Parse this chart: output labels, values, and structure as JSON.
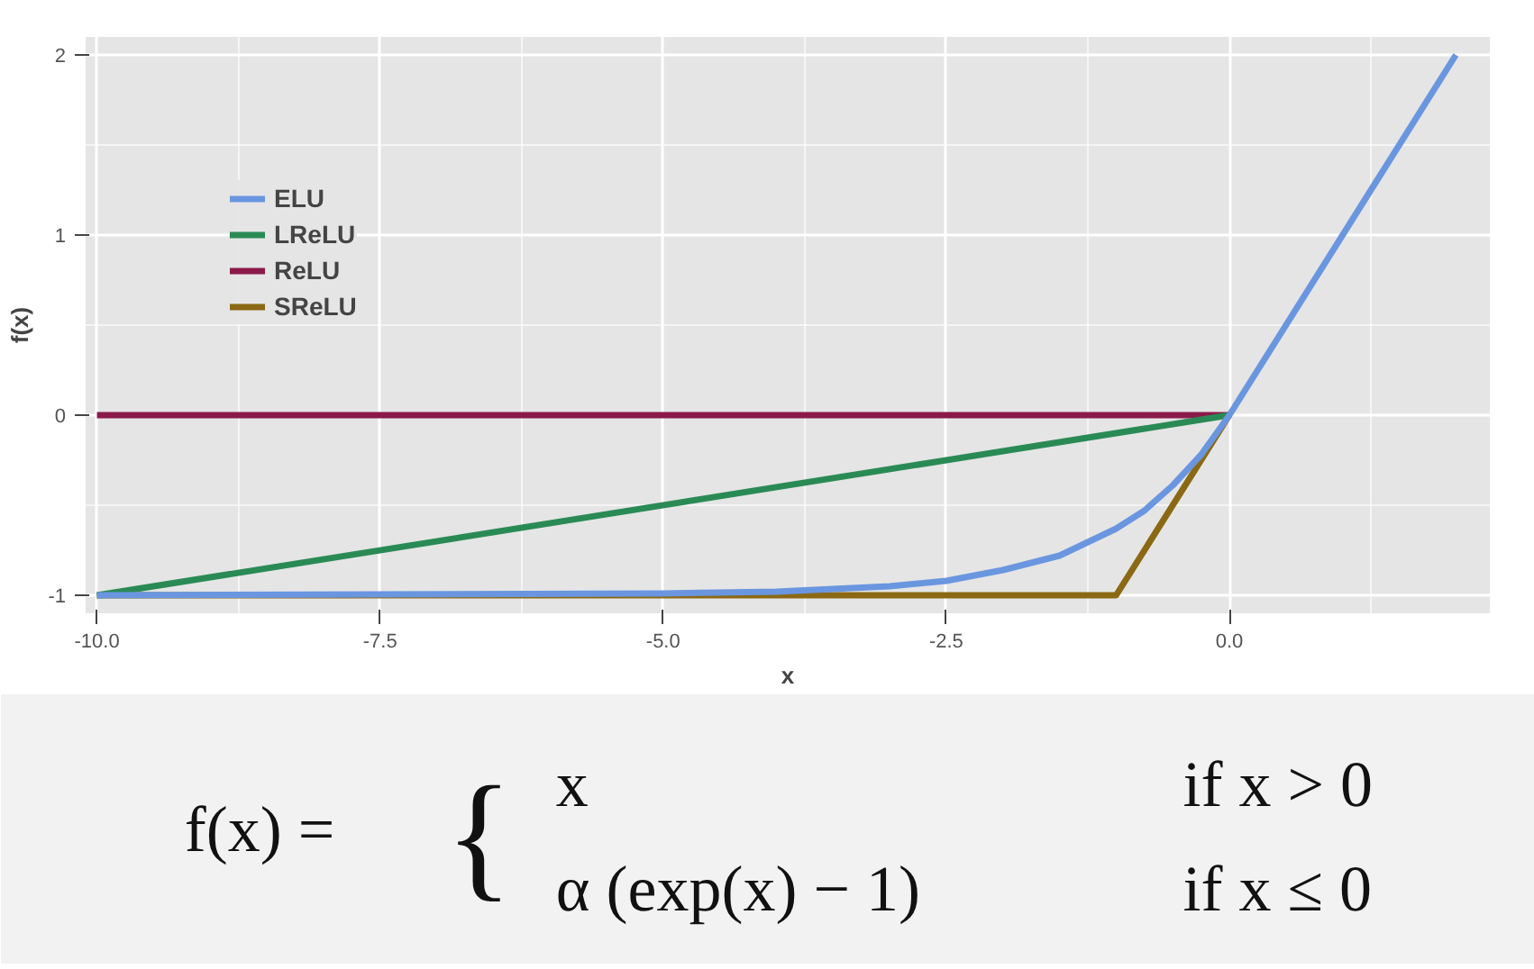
{
  "chart_data": {
    "type": "line",
    "xlabel": "x",
    "ylabel": "f(x)",
    "xlim": [
      -10.1,
      2.3
    ],
    "ylim": [
      -1.1,
      2.1
    ],
    "xticks": [
      {
        "value": -10,
        "label": "-10.0"
      },
      {
        "value": -7.5,
        "label": "-7.5"
      },
      {
        "value": -5,
        "label": "-5.0"
      },
      {
        "value": -2.5,
        "label": "-2.5"
      },
      {
        "value": 0,
        "label": "0.0"
      }
    ],
    "yticks": [
      -1,
      0,
      1,
      2
    ],
    "grid": true,
    "legend": "top left",
    "marker": "none",
    "line_style": "solid",
    "series": [
      {
        "name": "ELU",
        "color": "#6a96e0",
        "x": [
          -10,
          -5,
          -4,
          -3,
          -2.5,
          -2,
          -1.5,
          -1,
          -0.75,
          -0.5,
          -0.25,
          0,
          2
        ],
        "values": [
          -1,
          -0.99,
          -0.98,
          -0.95,
          -0.92,
          -0.86,
          -0.78,
          -0.63,
          -0.53,
          -0.39,
          -0.22,
          0,
          2
        ]
      },
      {
        "name": "LReLU",
        "color": "#2a8a55",
        "x": [
          -10,
          0
        ],
        "values": [
          -1,
          0
        ]
      },
      {
        "name": "ReLU",
        "color": "#8b1a4a",
        "x": [
          -10,
          0
        ],
        "values": [
          0,
          0
        ]
      },
      {
        "name": "SReLU",
        "color": "#8b6914",
        "x": [
          -10,
          -1,
          0
        ],
        "values": [
          -1,
          -1,
          0
        ]
      }
    ],
    "annotations": [
      "f(x) =",
      "{",
      "x",
      "if x > 0",
      "α (exp(x) − 1)",
      "if x ≤ 0"
    ]
  }
}
